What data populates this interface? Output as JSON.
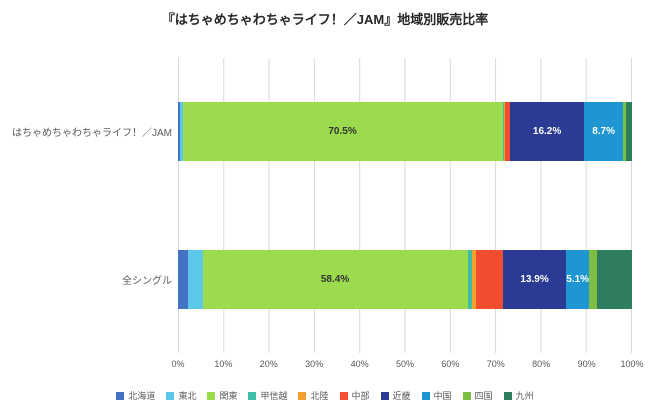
{
  "title": "『はちゃめちゃわちゃライフ！／JAM』地域別販売比率",
  "chart_data": {
    "type": "bar",
    "orientation": "horizontal",
    "stacked": true,
    "title": "『はちゃめちゃわちゃライフ！／JAM』地域別販売比率",
    "categories": [
      "はちゃめちゃわちゃライフ！／JAM",
      "全シングル"
    ],
    "series": [
      {
        "name": "北海道",
        "color": "#4472c4",
        "values": [
          0.4,
          2.2
        ],
        "labels": [
          null,
          null
        ],
        "label_color": "#ffffff"
      },
      {
        "name": "東北",
        "color": "#5bc8ea",
        "values": [
          0.6,
          3.2
        ],
        "labels": [
          null,
          null
        ],
        "label_color": "#333333"
      },
      {
        "name": "関東",
        "color": "#9bdb4d",
        "values": [
          70.5,
          58.4
        ],
        "labels": [
          "70.5%",
          "58.4%"
        ],
        "label_color": "#333333"
      },
      {
        "name": "甲信越",
        "color": "#3ebfa5",
        "values": [
          0.3,
          1.0
        ],
        "labels": [
          null,
          null
        ],
        "label_color": "#ffffff"
      },
      {
        "name": "北陸",
        "color": "#f2a12f",
        "values": [
          0.2,
          0.8
        ],
        "labels": [
          null,
          null
        ],
        "label_color": "#ffffff"
      },
      {
        "name": "中部",
        "color": "#f04e2e",
        "values": [
          1.2,
          6.0
        ],
        "labels": [
          null,
          null
        ],
        "label_color": "#ffffff"
      },
      {
        "name": "近畿",
        "color": "#2b3a92",
        "values": [
          16.2,
          13.9
        ],
        "labels": [
          "16.2%",
          "13.9%"
        ],
        "label_color": "#ffffff"
      },
      {
        "name": "中国",
        "color": "#1f96d2",
        "values": [
          8.7,
          5.1
        ],
        "labels": [
          "8.7%",
          "5.1%"
        ],
        "label_color": "#ffffff"
      },
      {
        "name": "四国",
        "color": "#7cbe41",
        "values": [
          0.5,
          1.8
        ],
        "labels": [
          null,
          null
        ],
        "label_color": "#ffffff"
      },
      {
        "name": "九州",
        "color": "#2f7d5f",
        "values": [
          1.4,
          7.6
        ],
        "labels": [
          null,
          null
        ],
        "label_color": "#ffffff"
      }
    ],
    "x_ticks": [
      "0%",
      "10%",
      "20%",
      "30%",
      "40%",
      "50%",
      "60%",
      "70%",
      "80%",
      "90%",
      "100%"
    ],
    "xlim": [
      0,
      100
    ],
    "grid": "vertical",
    "legend_position": "bottom"
  }
}
